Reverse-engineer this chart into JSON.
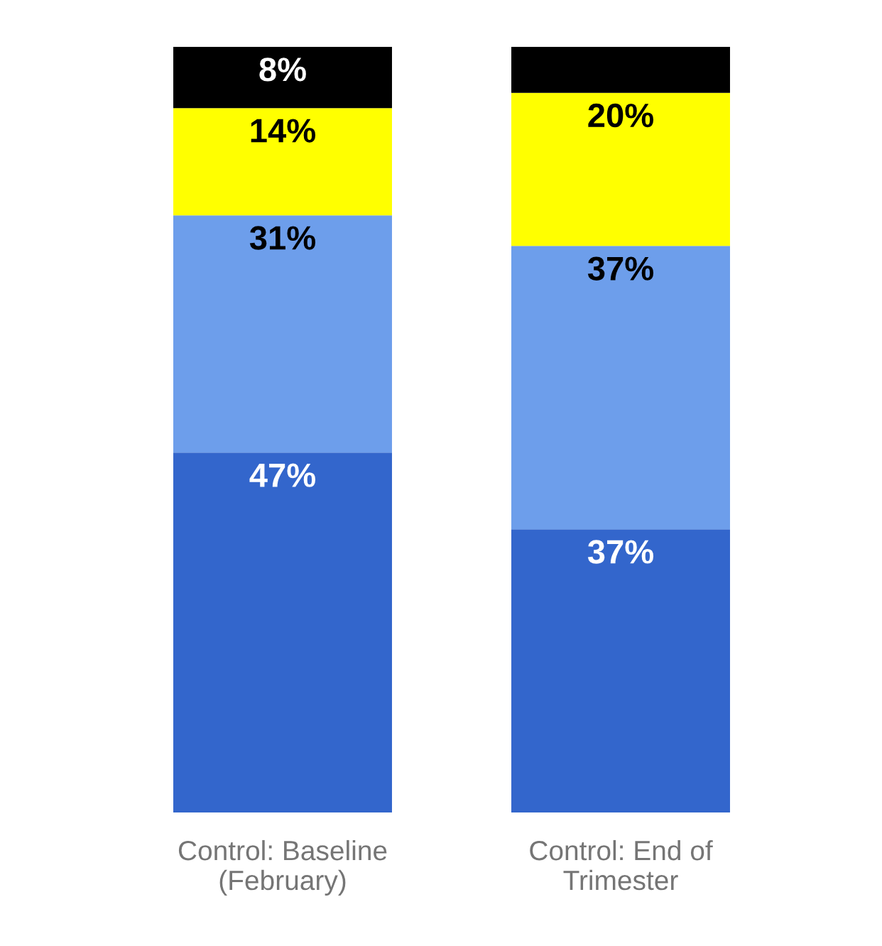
{
  "chart_data": {
    "type": "bar",
    "stacked": true,
    "categories": [
      "Control: Baseline\n(February)",
      "Control: End of\nTrimester"
    ],
    "series": [
      {
        "color": "#3366cc",
        "values": [
          47,
          37
        ],
        "value_labels": [
          "47%",
          "37%"
        ]
      },
      {
        "color": "#6d9eeb",
        "values": [
          31,
          37
        ],
        "value_labels": [
          "31%",
          "37%"
        ]
      },
      {
        "color": "#ffff00",
        "values": [
          14,
          20
        ],
        "value_labels": [
          "14%",
          "20%"
        ]
      },
      {
        "color": "#000000",
        "values": [
          8,
          6
        ],
        "value_labels": [
          "8%",
          null
        ]
      }
    ],
    "ylim": [
      0,
      100
    ],
    "tick_labels": "x",
    "grid": false,
    "legend": false
  }
}
